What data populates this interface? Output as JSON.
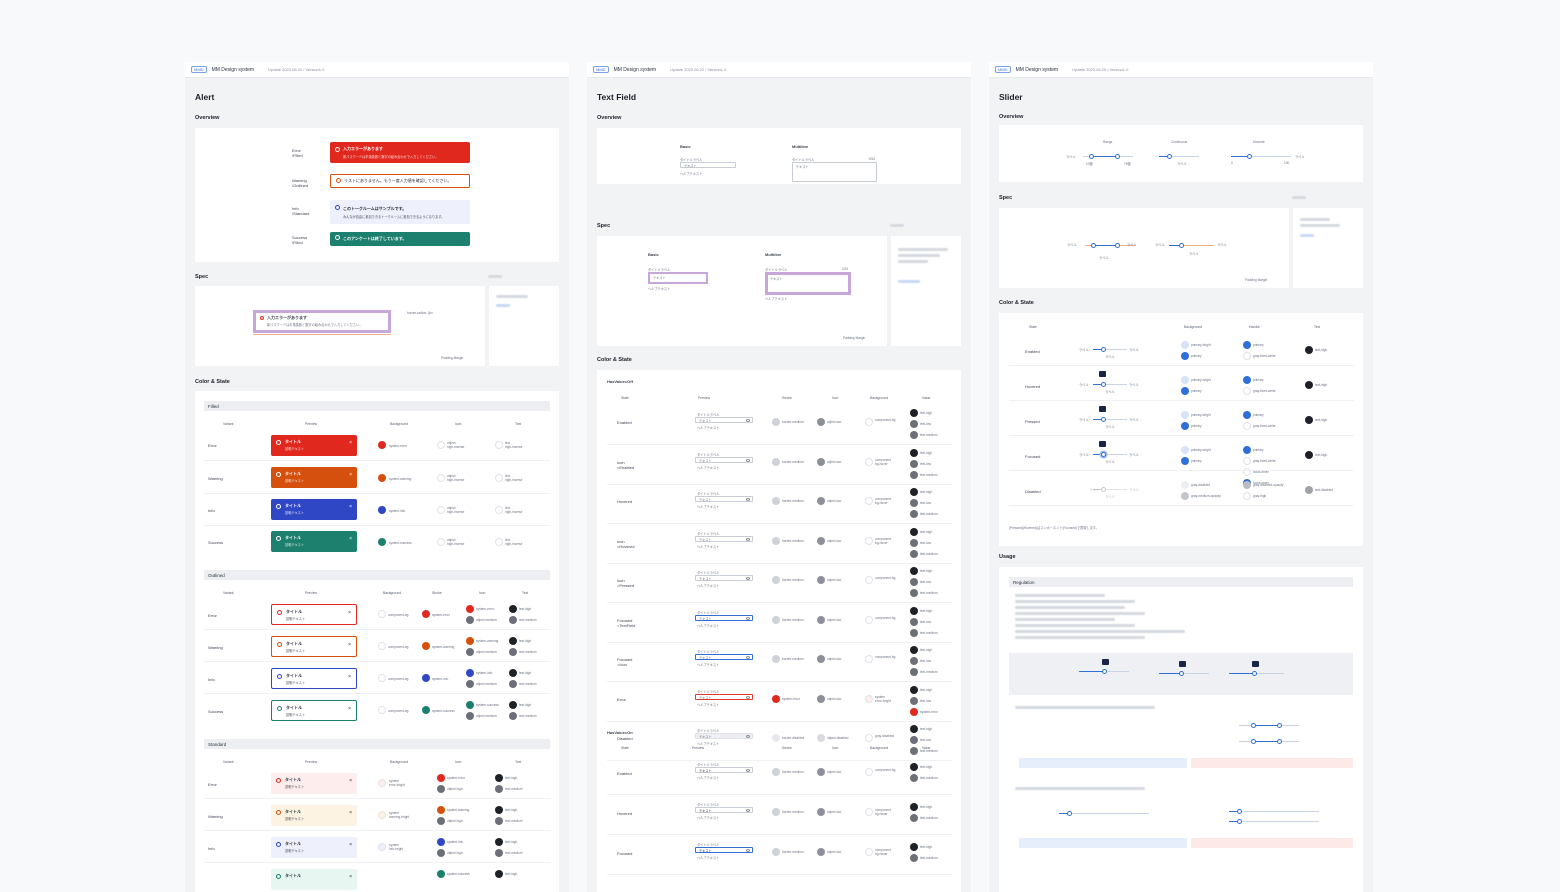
{
  "boards": [
    {
      "tag": "MMD",
      "brand": "MM Design system",
      "update": "Update 2023.08.20 / Version1.0",
      "title": "Alert"
    },
    {
      "tag": "MMD",
      "brand": "MM Design system",
      "update": "Update 2023.06.22 / Version1.0",
      "title": "Text Field"
    },
    {
      "tag": "MMD",
      "brand": "MM Design system",
      "update": "Update 2023.08.20 / Version1.0",
      "title": "Slider"
    }
  ],
  "alert": {
    "overview": "Overview",
    "spec": "Spec",
    "color_state": "Color & State",
    "overview_rows": [
      {
        "label": "Error\n/Filled",
        "heading": "入力エラーがあります",
        "body": "新パスワードは半角英数と数字の組み合わせで入力してください。"
      },
      {
        "label": "Warning\n/Outlined",
        "heading": "リストにありません。もう一度入力値を確認してください。",
        "body": ""
      },
      {
        "label": "Info\n/Standard",
        "heading": "このトークルームはサンプルです。",
        "body": "みんなが自由に参加できるトークルームに参加できるようになります。"
      },
      {
        "label": "Success\n/Filled",
        "heading": "このアンケートは終了しています。",
        "body": ""
      }
    ],
    "spec_alert_heading": "入力エラーがあります",
    "spec_alert_body": "新パスワードは半角英数と数字の組み合わせで入力してください。",
    "spec_legend": "Padding  Margin",
    "spec_note": "border-radius: 2px",
    "groups": [
      {
        "name": "Filled",
        "cols": [
          "Variant",
          "Preview",
          "Background",
          "Icon",
          "Text"
        ]
      },
      {
        "name": "Outlined",
        "cols": [
          "Variant",
          "Preview",
          "Background",
          "Stroke",
          "Icon",
          "Text"
        ]
      },
      {
        "name": "Standard",
        "cols": [
          "Variant",
          "Preview",
          "Background",
          "Icon",
          "Text"
        ]
      }
    ],
    "variants": [
      "Error",
      "Warning",
      "Info",
      "Success"
    ],
    "preview_title": "タイトル",
    "preview_body": "説明テキスト",
    "preview_close": "×",
    "filled_bg_tokens": [
      "system-error",
      "system-warning",
      "system-info",
      "system-success"
    ],
    "filled_icon_token": "object\nhigh-inverse",
    "filled_text_token": "text\nhigh-inverse",
    "outlined_bg_token": "component-bg",
    "outlined_stroke_tokens": [
      "system-error",
      "system-warning",
      "system-info",
      "system-success"
    ],
    "outlined_icon_tokens": [
      "system-error",
      "system-warning",
      "system-info",
      "system-success"
    ],
    "outlined_icon_token2": "object-medium",
    "outlined_text_tokens": [
      "text-high",
      "text-medium"
    ],
    "standard_bg_tokens": [
      "system\nerror-bright",
      "system\nwarning-bright",
      "system\ninfo-bright",
      "system\nsuccess-bright"
    ],
    "standard_icon_tokens": [
      "system-error",
      "system-warning",
      "system-info",
      "system-success"
    ],
    "standard_icon_token2": "object-high",
    "standard_text_tokens": [
      "text-high",
      "text-medium"
    ]
  },
  "textfield": {
    "overview": "Overview",
    "spec": "Spec",
    "color_state": "Color & State",
    "basic": "Basic",
    "multiline": "Multiline",
    "label": "タイトルラベル",
    "placeholder": "テキスト",
    "helper": "ヘルプテキスト",
    "counter": "0/10",
    "spec_legend": "Padding  Margin",
    "group_off": "HasValue=Off",
    "group_on": "HasValue=On",
    "cols": [
      "State",
      "Preview",
      "Stroke",
      "Icon",
      "Background",
      "Value"
    ],
    "states_off": [
      "Enabled",
      "Icon\n=Enabled",
      "Hovered",
      "Icon\n=Hovered",
      "Icon\n=Pressed",
      "Focused\n=TextField",
      "Focused\n=Icon",
      "Error",
      "Disabled"
    ],
    "states_on": [
      "Enabled",
      "Hovered",
      "Focused"
    ],
    "stroke_tokens": [
      "border-medium",
      "border-medium",
      "border-medium",
      "border-medium",
      "border-medium",
      "border-medium",
      "border-medium",
      "system-error",
      "border-disabled"
    ],
    "stroke_focus_token": "focus-inner",
    "stroke_focus_outer": "focus-outer",
    "icon_tokens": [
      "object-low",
      "object-low",
      "object-low",
      "object-low",
      "object-low",
      "object-low",
      "object-low",
      "object-low",
      "object-disabled"
    ],
    "icon_hover_token": "gray-alpha-hover",
    "icon_pressed_token": "gray-alpha-pressed",
    "icon_focus_token": "object-interfocused",
    "bg_tokens": [
      "component-bg",
      "component\nbg-hover",
      "component\nbg-hover",
      "component\nbg-hover",
      "component-bg",
      "component-bg",
      "component-bg",
      "system\nerror-bright",
      "gray-disabled"
    ],
    "value_tokens": [
      "text-high",
      "text-low",
      "text-medium"
    ],
    "value_error": "system-error"
  },
  "slider": {
    "overview": "Overview",
    "spec": "Spec",
    "color_state": "Color & State",
    "usage": "Usage",
    "regulation": "Regulation",
    "kinds": [
      "Range",
      "Continuous",
      "Discrete"
    ],
    "label": "ラベル",
    "values": [
      "10値",
      "75値",
      "0",
      "100"
    ],
    "spec_legend": "Padding  Margin",
    "cols": [
      "State",
      "Background",
      "Handle",
      "Text"
    ],
    "states": [
      "Enabled",
      "Hovered",
      "Pressed",
      "Focused",
      "Disabled"
    ],
    "bg_tokens": [
      "primary-bright",
      "primary"
    ],
    "bg_disabled": [
      "gray-disabled",
      "gray-medium-opacity"
    ],
    "handle_tokens": [
      "primary",
      "gray-fixed-white"
    ],
    "handle_focus": "focus-inner",
    "handle_focus_outer": "focus-outer",
    "handle_disabled": [
      "gray-disabled-opacity",
      "gray-high"
    ],
    "text_tokens": [
      "text-high",
      "text-disabled"
    ],
    "tip_value": "10",
    "note": "(Pressed)(Hovered)はコンポーネント(Focused)で表現します。"
  },
  "colors": {
    "error": "#e0281e",
    "warning": "#d4500c",
    "info": "#2f47c4",
    "success": "#1d7f6e",
    "primary": "#2f6fd8",
    "dark": "#1e2128",
    "gray": "#6b6f78",
    "light_gray": "#cfd2d8",
    "alert_spec_purple": "#c7a6d9"
  }
}
